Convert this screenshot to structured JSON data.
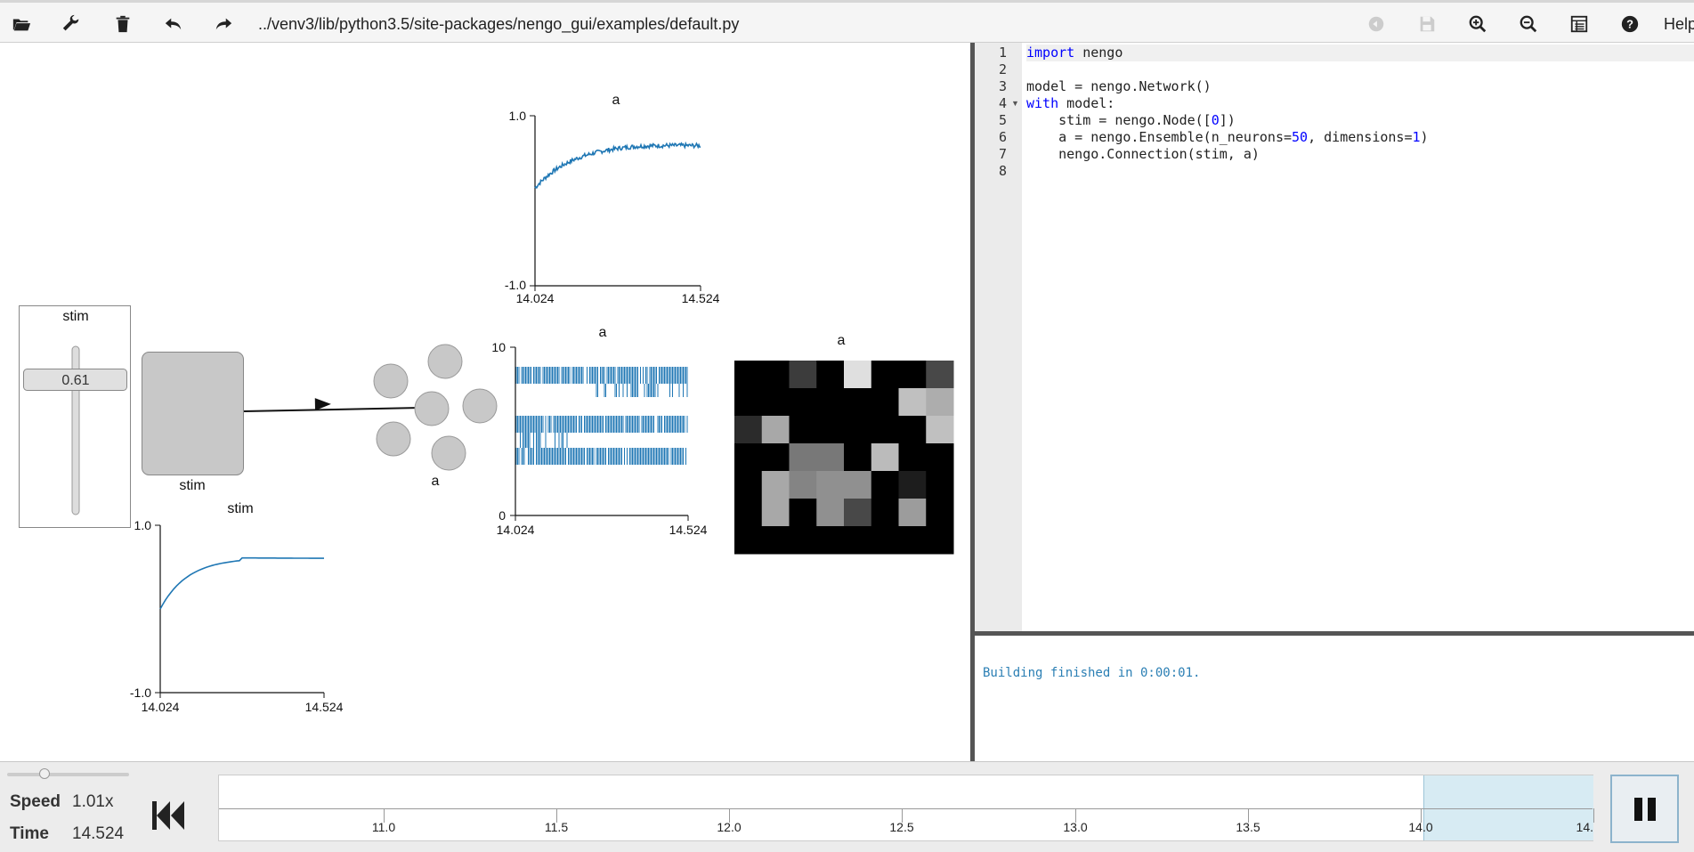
{
  "toolbar": {
    "file_path": "../venv3/lib/python3.5/site-packages/nengo_gui/examples/default.py",
    "help": "Help"
  },
  "canvas": {
    "slider": {
      "title": "stim",
      "value": "0.61"
    },
    "node": {
      "label": "stim"
    },
    "ensemble": {
      "label": "a"
    },
    "stim_plot": {
      "title": "stim",
      "ymax": "1.0",
      "ymin": "-1.0",
      "xmin": "14.024",
      "xmax": "14.524"
    },
    "value_plot": {
      "title": "a",
      "ymax": "1.0",
      "ymin": "-1.0",
      "xmin": "14.024",
      "xmax": "14.524"
    },
    "spike_plot": {
      "title": "a",
      "ymax": "10",
      "ymin": "0",
      "xmin": "14.024",
      "xmax": "14.524"
    },
    "voltage_grid": {
      "title": "a",
      "rows": [
        [
          0,
          0,
          0.25,
          0,
          0.93,
          0,
          0,
          0.3
        ],
        [
          0,
          0,
          0,
          0,
          0,
          0,
          0.8,
          0.72
        ],
        [
          0.18,
          0.7,
          0,
          0,
          0,
          0,
          0,
          0.8
        ],
        [
          0,
          0,
          0.5,
          0.5,
          0,
          0.78,
          0,
          0
        ],
        [
          0,
          0.7,
          0.55,
          0.6,
          0.6,
          0,
          0.12,
          0
        ],
        [
          0,
          0.7,
          0,
          0.6,
          0.3,
          0,
          0.65,
          0
        ],
        [
          0,
          0,
          0,
          0,
          0,
          0,
          0,
          0
        ]
      ]
    }
  },
  "editor": {
    "line_numbers": [
      "1",
      "2",
      "3",
      "4",
      "5",
      "6",
      "7",
      "8"
    ],
    "lines": [
      [
        {
          "t": "import",
          "c": "kw"
        },
        {
          "t": " nengo",
          "c": ""
        }
      ],
      [],
      [
        {
          "t": "model = nengo.Network()",
          "c": ""
        }
      ],
      [
        {
          "t": "with",
          "c": "kw"
        },
        {
          "t": " model:",
          "c": ""
        }
      ],
      [
        {
          "t": "    stim = nengo.Node([",
          "c": ""
        },
        {
          "t": "0",
          "c": "num"
        },
        {
          "t": "])",
          "c": ""
        }
      ],
      [
        {
          "t": "    a = nengo.Ensemble(n_neurons=",
          "c": ""
        },
        {
          "t": "50",
          "c": "num"
        },
        {
          "t": ", dimensions=",
          "c": ""
        },
        {
          "t": "1",
          "c": "num"
        },
        {
          "t": ")",
          "c": ""
        }
      ],
      [
        {
          "t": "    nengo.Connection(stim, a)",
          "c": ""
        }
      ],
      []
    ]
  },
  "console": {
    "message": "Building finished in 0:00:01."
  },
  "bottom": {
    "speed_label": "Speed",
    "speed_value": "1.01x",
    "time_label": "Time",
    "time_value": "14.524",
    "timeline_ticks": [
      "11.0",
      "11.5",
      "12.0",
      "12.5",
      "13.0",
      "13.5",
      "14.0",
      "14."
    ]
  },
  "colors": {
    "plot_blue": "#1f77b4",
    "accent_window": "#d7ebf3"
  }
}
